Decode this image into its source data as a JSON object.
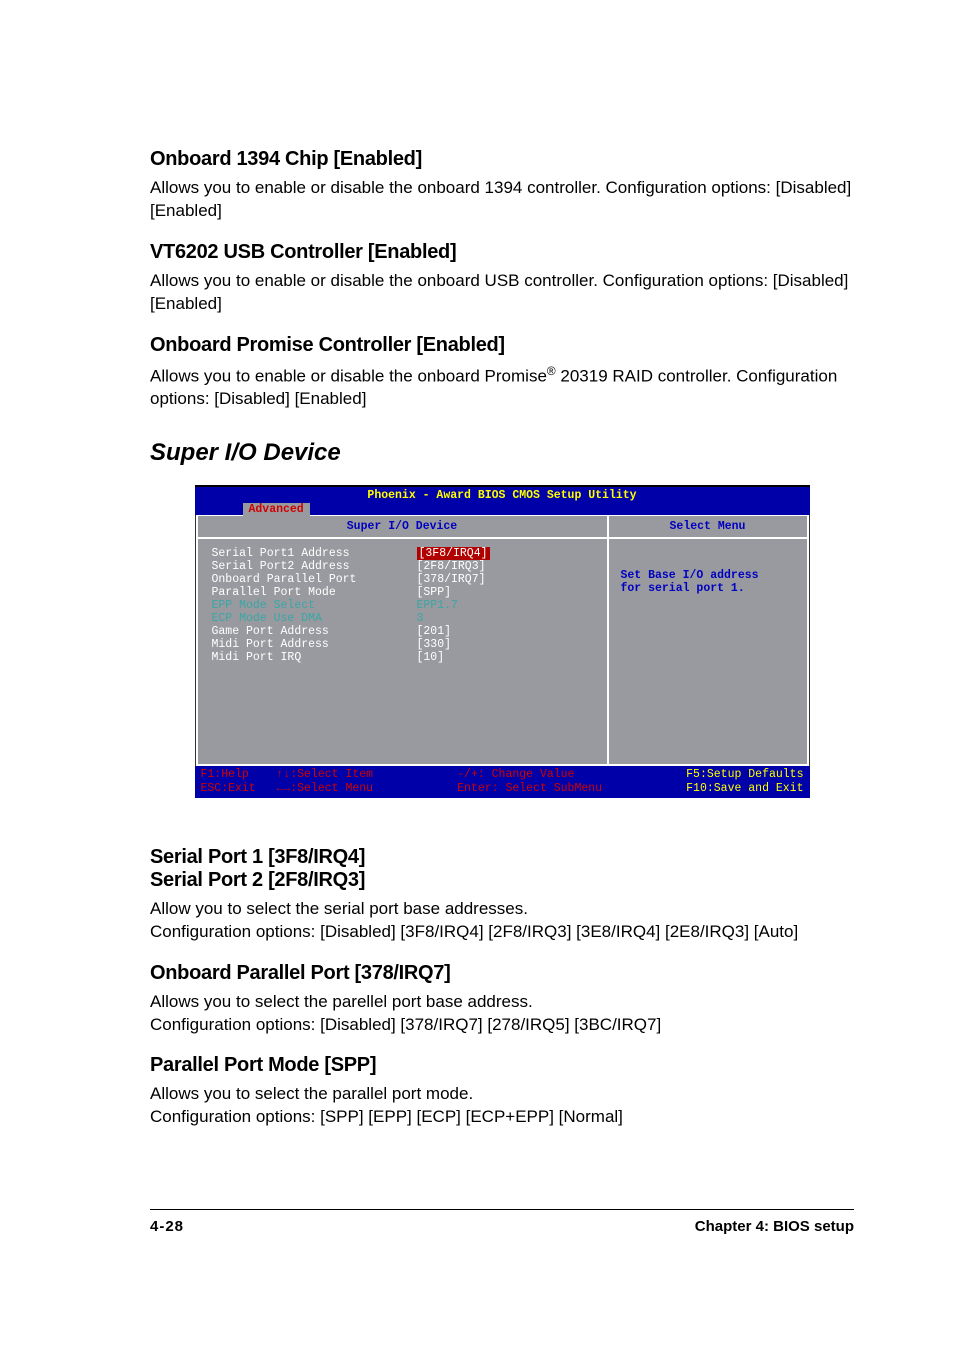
{
  "sections": [
    {
      "heading": "Onboard 1394 Chip [Enabled]",
      "body": "Allows you to enable or disable the onboard 1394 controller. Configuration options: [Disabled] [Enabled]"
    },
    {
      "heading": "VT6202 USB Controller [Enabled]",
      "body": "Allows you to enable or disable the onboard USB controller. Configuration options: [Disabled] [Enabled]"
    },
    {
      "heading": "Onboard Promise Controller [Enabled]",
      "body_html": "Allows you to enable or disable the onboard Promise<sup>®</sup> 20319 RAID controller. Configuration options: [Disabled] [Enabled]"
    }
  ],
  "subtitle": "Super I/O Device",
  "bios": {
    "title": "Phoenix - Award BIOS CMOS Setup Utility",
    "tab": "Advanced",
    "panel_title": "Super I/O Device",
    "right_title": "Select Menu",
    "help_line1": "Set Base I/O address",
    "help_line2": "for serial port 1.",
    "rows": [
      {
        "label": "Serial Port1 Address",
        "value": "[3F8/IRQ4]",
        "style": "white",
        "selected": true
      },
      {
        "label": "Serial Port2 Address",
        "value": "[2F8/IRQ3]",
        "style": "white"
      },
      {
        "label": "Onboard Parallel Port",
        "value": "[378/IRQ7]",
        "style": "white"
      },
      {
        "label": "Parallel Port Mode",
        "value": "[SPP]",
        "style": "white"
      },
      {
        "label": "EPP Mode Select",
        "value": "EPP1.7",
        "style": "teal"
      },
      {
        "label": "ECP Mode Use DMA",
        "value": "3",
        "style": "teal"
      },
      {
        "label": "Game Port Address",
        "value": "[201]",
        "style": "white"
      },
      {
        "label": "Midi Port Address",
        "value": "[330]",
        "style": "white"
      },
      {
        "label": "Midi Port IRQ",
        "value": "[10]",
        "style": "white"
      }
    ],
    "footer": {
      "l1a": "F1:Help",
      "l1b": "↑↓:Select Item",
      "l1c": "-/+: Change Value",
      "l1d": "F5:Setup Defaults",
      "l2a": "ESC:Exit",
      "l2b": "←→:Select Menu",
      "l2c": "Enter: Select SubMenu",
      "l2d": "F10:Save and Exit"
    }
  },
  "post_sections": [
    {
      "heading1": "Serial Port 1 [3F8/IRQ4]",
      "heading2": "Serial Port 2 [2F8/IRQ3]",
      "body": "Allow you to select the serial port base addresses.\nConfiguration options: [Disabled] [3F8/IRQ4] [2F8/IRQ3] [3E8/IRQ4] [2E8/IRQ3] [Auto]"
    },
    {
      "heading1": "Onboard Parallel Port [378/IRQ7]",
      "body": "Allows you to select the parellel port base address.\nConfiguration options: [Disabled] [378/IRQ7] [278/IRQ5] [3BC/IRQ7]"
    },
    {
      "heading1": "Parallel Port Mode [SPP]",
      "body": "Allows you to select the parallel port mode.\nConfiguration options: [SPP] [EPP] [ECP] [ECP+EPP] [Normal]"
    }
  ],
  "footer": {
    "left": "4-28",
    "right": "Chapter 4: BIOS setup"
  }
}
